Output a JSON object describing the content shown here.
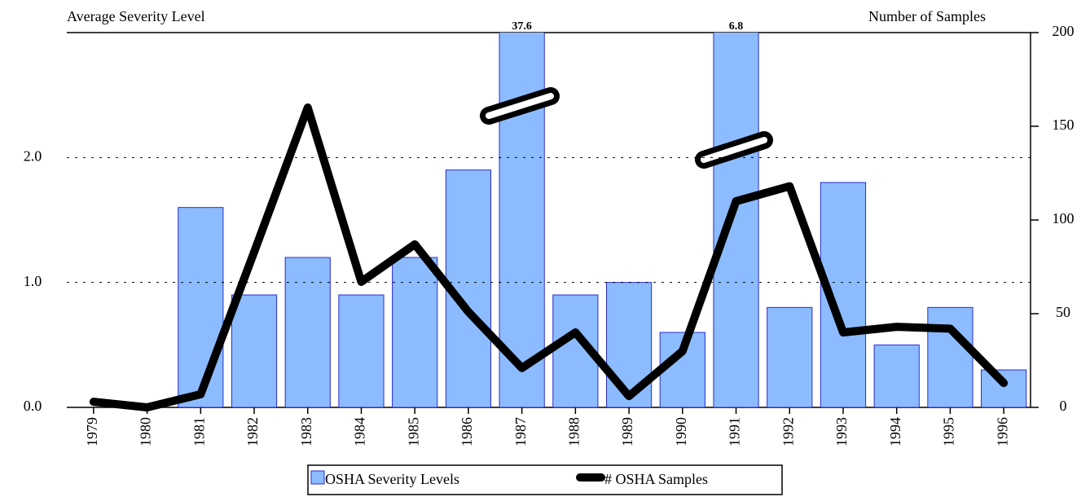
{
  "chart_data": {
    "type": "combo",
    "ylabel": "Average Severity Level",
    "y2label": "Number of Samples",
    "categories": [
      "1979",
      "1980",
      "1981",
      "1982",
      "1983",
      "1984",
      "1985",
      "1986",
      "1987",
      "1988",
      "1989",
      "1990",
      "1991",
      "1992",
      "1993",
      "1994",
      "1995",
      "1996"
    ],
    "series": [
      {
        "name": "OSHA Severity Levels",
        "type": "bar",
        "color": "#8cbcff",
        "edge": "#2a2ad0",
        "values": [
          0,
          0,
          1.6,
          0.9,
          1.2,
          0.9,
          1.2,
          1.9,
          37.6,
          0.9,
          1.0,
          0.6,
          6.8,
          0.8,
          1.8,
          0.5,
          0.8,
          0.3
        ],
        "value_labels": [
          null,
          null,
          null,
          null,
          null,
          null,
          null,
          null,
          "37.6",
          null,
          null,
          null,
          "6.8",
          null,
          null,
          null,
          null,
          null
        ]
      },
      {
        "name": "# OSHA Samples",
        "type": "line",
        "axis": "y2",
        "color": "#000000",
        "values": [
          3,
          0,
          7,
          83,
          160,
          67,
          87,
          51,
          21,
          40,
          6,
          30,
          110,
          118,
          40,
          43,
          42,
          13
        ]
      }
    ],
    "ylim": [
      0,
      3
    ],
    "yticks": [
      {
        "value": 0,
        "label": "0.0"
      },
      {
        "value": 1,
        "label": "1.0"
      },
      {
        "value": 2,
        "label": "2.0"
      }
    ],
    "y2lim": [
      0,
      200
    ],
    "y2ticks": [
      0,
      50,
      100,
      150,
      200
    ],
    "grid": true,
    "legend": "bottom"
  }
}
